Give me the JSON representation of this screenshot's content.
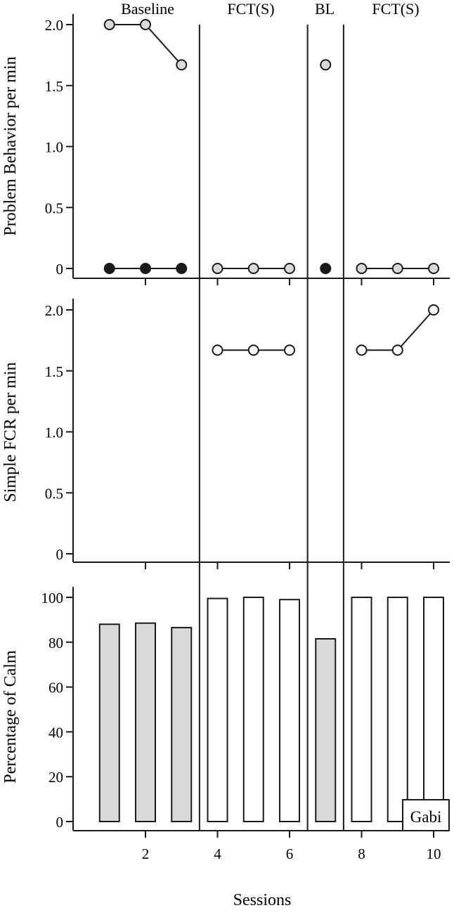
{
  "chart_data": [
    {
      "type": "line",
      "ylabel": "Problem Behavior per min",
      "ylim": [
        0,
        2.0
      ],
      "yticks": [
        "0",
        "0.5",
        "1.0",
        "1.5",
        "2.0"
      ],
      "phases": [
        "Baseline",
        "FCT(S)",
        "BL",
        "FCT(S)"
      ],
      "phase_changes_after_session": [
        3,
        6,
        7
      ],
      "series": [
        {
          "marker": "gray-circle",
          "segments": [
            [
              {
                "x": 1,
                "y": 2.0
              },
              {
                "x": 2,
                "y": 2.0
              },
              {
                "x": 3,
                "y": 1.67
              }
            ],
            [
              {
                "x": 4,
                "y": 0
              },
              {
                "x": 5,
                "y": 0
              },
              {
                "x": 6,
                "y": 0
              }
            ],
            [
              {
                "x": 7,
                "y": 1.67
              }
            ],
            [
              {
                "x": 8,
                "y": 0
              },
              {
                "x": 9,
                "y": 0
              },
              {
                "x": 10,
                "y": 0
              }
            ]
          ]
        },
        {
          "marker": "black-circle",
          "segments": [
            [
              {
                "x": 1,
                "y": 0
              },
              {
                "x": 2,
                "y": 0
              },
              {
                "x": 3,
                "y": 0
              }
            ],
            [
              {
                "x": 7,
                "y": 0
              }
            ]
          ]
        }
      ]
    },
    {
      "type": "line",
      "ylabel": "Simple FCR per min",
      "ylim": [
        0,
        2.0
      ],
      "yticks": [
        "0",
        "0.5",
        "1.0",
        "1.5",
        "2.0"
      ],
      "series": [
        {
          "marker": "white-circle",
          "segments": [
            [
              {
                "x": 4,
                "y": 1.67
              },
              {
                "x": 5,
                "y": 1.67
              },
              {
                "x": 6,
                "y": 1.67
              }
            ],
            [
              {
                "x": 8,
                "y": 1.67
              },
              {
                "x": 9,
                "y": 1.67
              },
              {
                "x": 10,
                "y": 2.0
              }
            ]
          ]
        }
      ]
    },
    {
      "type": "bar",
      "ylabel": "Percentage of Calm",
      "xlabel": "Sessions",
      "ylim": [
        0,
        100
      ],
      "yticks": [
        "0",
        "20",
        "40",
        "60",
        "80",
        "100"
      ],
      "xticks": [
        "2",
        "4",
        "6",
        "8",
        "10"
      ],
      "x": [
        1,
        2,
        3,
        4,
        5,
        6,
        7,
        8,
        9,
        10
      ],
      "values": [
        88,
        88.5,
        86.5,
        99.5,
        100,
        99,
        81.5,
        100,
        100,
        100
      ],
      "phase_fill": [
        "gray",
        "gray",
        "gray",
        "white",
        "white",
        "white",
        "gray",
        "white",
        "white",
        "white"
      ],
      "annotation": "Gabi"
    }
  ],
  "colors": {
    "gray_fill": "#d9d9d9",
    "black_fill": "#1a1a1a",
    "white_fill": "#ffffff",
    "stroke": "#1a1a1a"
  }
}
